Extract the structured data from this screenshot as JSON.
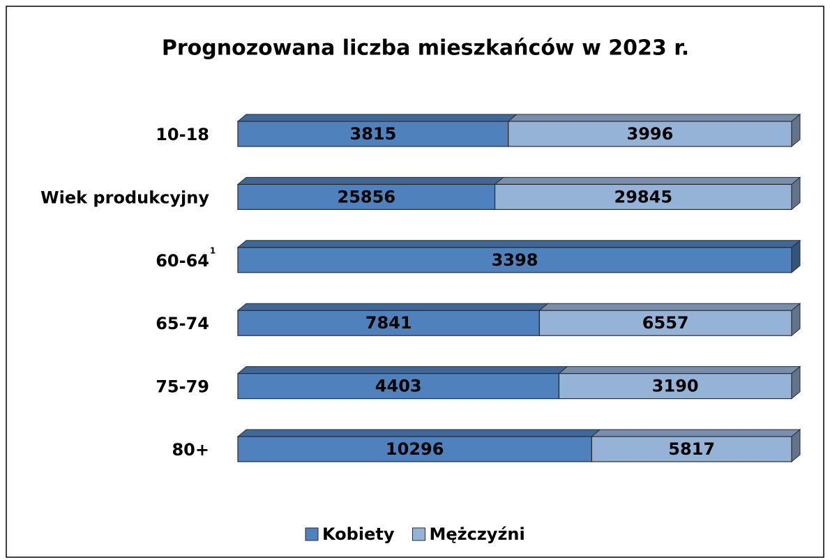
{
  "chart_data": {
    "type": "bar",
    "orientation": "horizontal",
    "stacked": "percent",
    "title": "Prognozowana liczba mieszkańców w 2023 r.",
    "categories": [
      "10-18",
      "Wiek produkcyjny",
      "60-64",
      "65-74",
      "75-79",
      "80+"
    ],
    "annotations": [
      "1"
    ],
    "series": [
      {
        "name": "Kobiety",
        "color": "#4f81bd",
        "values": [
          3815,
          25856,
          3398,
          7841,
          4403,
          10296
        ]
      },
      {
        "name": "Mężczyźni",
        "color": "#95b3d7",
        "values": [
          3996,
          29845,
          null,
          6557,
          3190,
          5817
        ]
      }
    ],
    "legend": "bottom"
  }
}
